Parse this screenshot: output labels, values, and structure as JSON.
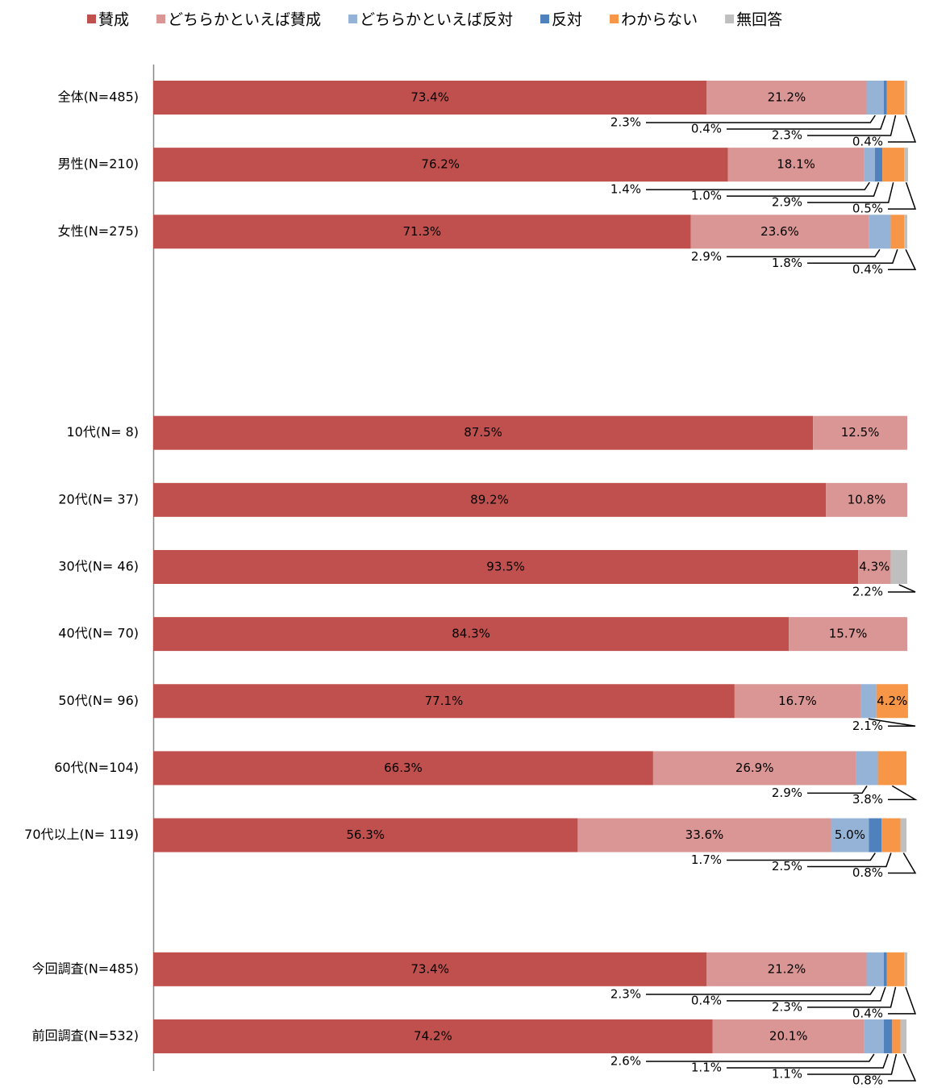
{
  "chart_data": {
    "type": "stacked-barh",
    "categories": [
      "全体(N=485)",
      "男性(N=210)",
      "女性(N=275)",
      null,
      null,
      "10代(N= 8)",
      "20代(N= 37)",
      "30代(N= 46)",
      "40代(N= 70)",
      "50代(N= 96)",
      "60代(N=104)",
      "70代以上(N= 119)",
      null,
      "今回調査(N=485)",
      "前回調査(N=532)"
    ],
    "xlim": [
      0,
      100
    ],
    "legend": "top",
    "series": [
      {
        "name": "賛成",
        "color": "#c0504d",
        "values": [
          73.4,
          76.2,
          71.3,
          null,
          null,
          87.5,
          89.2,
          93.5,
          84.3,
          77.1,
          66.3,
          56.3,
          null,
          73.4,
          74.2
        ],
        "value_labels": [
          "73.4%",
          "76.2%",
          "71.3%",
          null,
          null,
          "87.5%",
          "89.2%",
          "93.5%",
          "84.3%",
          "77.1%",
          "66.3%",
          "56.3%",
          null,
          "73.4%",
          "74.2%"
        ]
      },
      {
        "name": "どちらかといえば賛成",
        "color": "#d99694",
        "values": [
          21.2,
          18.1,
          23.6,
          null,
          null,
          12.5,
          10.8,
          4.3,
          15.7,
          16.7,
          26.9,
          33.6,
          null,
          21.2,
          20.1
        ],
        "value_labels": [
          "21.2%",
          "18.1%",
          "23.6%",
          null,
          null,
          "12.5%",
          "10.8%",
          "4.3%",
          "15.7%",
          "16.7%",
          "26.9%",
          "33.6%",
          null,
          "21.2%",
          "20.1%"
        ]
      },
      {
        "name": "どちらかといえば反対",
        "color": "#95b3d7",
        "values": [
          2.3,
          1.4,
          2.9,
          null,
          null,
          null,
          null,
          null,
          null,
          2.1,
          2.9,
          5.0,
          null,
          2.3,
          2.6
        ],
        "value_labels": [
          "2.3%",
          "1.4%",
          "2.9%",
          null,
          null,
          null,
          null,
          null,
          null,
          "2.1%",
          "2.9%",
          "5.0%",
          null,
          "2.3%",
          "2.6%"
        ]
      },
      {
        "name": "反対",
        "color": "#4f81bd",
        "values": [
          0.4,
          1.0,
          null,
          null,
          null,
          null,
          null,
          null,
          null,
          null,
          null,
          1.7,
          null,
          0.4,
          1.1
        ],
        "value_labels": [
          "0.4%",
          "1.0%",
          null,
          null,
          null,
          null,
          null,
          null,
          null,
          null,
          null,
          "1.7%",
          null,
          "0.4%",
          "1.1%"
        ]
      },
      {
        "name": "わからない",
        "color": "#f79646",
        "values": [
          2.3,
          2.9,
          1.8,
          null,
          null,
          null,
          null,
          null,
          null,
          4.2,
          3.8,
          2.5,
          null,
          2.3,
          1.1
        ],
        "value_labels": [
          "2.3%",
          "2.9%",
          "1.8%",
          null,
          null,
          null,
          null,
          null,
          null,
          "4.2%",
          "3.8%",
          "2.5%",
          null,
          "2.3%",
          "1.1%"
        ]
      },
      {
        "name": "無回答",
        "color": "#bfbfbf",
        "values": [
          0.4,
          0.5,
          0.4,
          null,
          null,
          null,
          null,
          2.2,
          null,
          null,
          null,
          0.8,
          null,
          0.4,
          0.8
        ],
        "value_labels": [
          "0.4%",
          "0.5%",
          "0.4%",
          null,
          null,
          null,
          null,
          "2.2%",
          null,
          null,
          null,
          "0.8%",
          null,
          "0.4%",
          "0.8%"
        ]
      }
    ]
  }
}
